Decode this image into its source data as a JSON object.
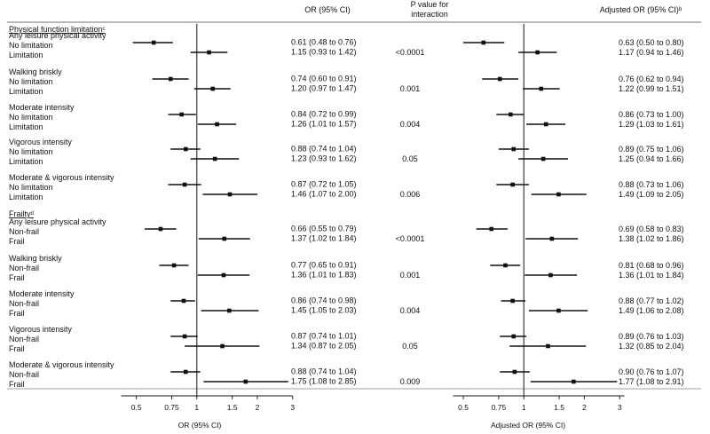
{
  "chart_data": {
    "type": "forest",
    "headers": {
      "or_col": "OR (95% CI)",
      "p_col": "P value for\ninteraction",
      "adj_col": "Adjusted OR (95% CI)ᵇ"
    },
    "left_axis": {
      "label": "OR (95% CI)",
      "scale": "log",
      "ticks": [
        "0.5",
        "0.75",
        "1",
        "1.5",
        "2",
        "3"
      ],
      "tick_values": [
        0.5,
        0.75,
        1,
        1.5,
        2,
        3
      ],
      "xlim": [
        0.45,
        3.2
      ]
    },
    "right_axis": {
      "label": "Adjusted OR (95% CI)",
      "scale": "log",
      "ticks": [
        "0.5",
        "0.75",
        "1",
        "1.5",
        "2",
        "3"
      ],
      "tick_values": [
        0.5,
        0.75,
        1,
        1.5,
        2,
        3
      ],
      "xlim": [
        0.45,
        3.2
      ]
    },
    "sections": [
      {
        "title": "Physical function limitationᶜ",
        "groups": [
          {
            "name": "Any leisure physical activity",
            "p": "<0.0001",
            "rows": [
              {
                "label": "No limitation",
                "or": 0.61,
                "lo": 0.48,
                "hi": 0.76,
                "or_text": "0.61 (0.48 to 0.76)",
                "aor": 0.63,
                "alo": 0.5,
                "ahi": 0.8,
                "aor_text": "0.63 (0.50 to 0.80)"
              },
              {
                "label": "Limitation",
                "or": 1.15,
                "lo": 0.93,
                "hi": 1.42,
                "or_text": "1.15 (0.93 to 1.42)",
                "aor": 1.17,
                "alo": 0.94,
                "ahi": 1.46,
                "aor_text": "1.17 (0.94 to 1.46)"
              }
            ]
          },
          {
            "name": "Walking briskly",
            "p": "0.001",
            "rows": [
              {
                "label": "No limitation",
                "or": 0.74,
                "lo": 0.6,
                "hi": 0.91,
                "or_text": "0.74 (0.60 to 0.91)",
                "aor": 0.76,
                "alo": 0.62,
                "ahi": 0.94,
                "aor_text": "0.76 (0.62 to 0.94)"
              },
              {
                "label": "Limitation",
                "or": 1.2,
                "lo": 0.97,
                "hi": 1.47,
                "or_text": "1.20 (0.97 to 1.47)",
                "aor": 1.22,
                "alo": 0.99,
                "ahi": 1.51,
                "aor_text": "1.22 (0.99 to 1.51)"
              }
            ]
          },
          {
            "name": "Moderate intensity",
            "p": "0.004",
            "rows": [
              {
                "label": "No limitation",
                "or": 0.84,
                "lo": 0.72,
                "hi": 0.99,
                "or_text": "0.84 (0.72 to 0.99)",
                "aor": 0.86,
                "alo": 0.73,
                "ahi": 1.0,
                "aor_text": "0.86 (0.73 to 1.00)"
              },
              {
                "label": "Limitation",
                "or": 1.26,
                "lo": 1.01,
                "hi": 1.57,
                "or_text": "1.26 (1.01 to 1.57)",
                "aor": 1.29,
                "alo": 1.03,
                "ahi": 1.61,
                "aor_text": "1.29 (1.03 to 1.61)"
              }
            ]
          },
          {
            "name": "Vigorous intensity",
            "p": "0.05",
            "rows": [
              {
                "label": "No limitation",
                "or": 0.88,
                "lo": 0.74,
                "hi": 1.04,
                "or_text": "0.88 (0.74 to 1.04)",
                "aor": 0.89,
                "alo": 0.75,
                "ahi": 1.06,
                "aor_text": "0.89 (0.75 to 1.06)"
              },
              {
                "label": "Limitation",
                "or": 1.23,
                "lo": 0.93,
                "hi": 1.62,
                "or_text": "1.23 (0.93 to 1.62)",
                "aor": 1.25,
                "alo": 0.94,
                "ahi": 1.66,
                "aor_text": "1.25 (0.94 to 1.66)"
              }
            ]
          },
          {
            "name": "Moderate & vigorous intensity",
            "p": "0.006",
            "rows": [
              {
                "label": "No limitation",
                "or": 0.87,
                "lo": 0.72,
                "hi": 1.05,
                "or_text": "0.87 (0.72 to 1.05)",
                "aor": 0.88,
                "alo": 0.73,
                "ahi": 1.06,
                "aor_text": "0.88 (0.73 to 1.06)"
              },
              {
                "label": "Limitation",
                "or": 1.46,
                "lo": 1.07,
                "hi": 2.0,
                "or_text": "1.46 (1.07 to 2.00)",
                "aor": 1.49,
                "alo": 1.09,
                "ahi": 2.05,
                "aor_text": "1.49 (1.09 to 2.05)"
              }
            ]
          }
        ]
      },
      {
        "title": "Frailtyᵈ",
        "groups": [
          {
            "name": "Any leisure physical activity",
            "p": "<0.0001",
            "rows": [
              {
                "label": "Non-frail",
                "or": 0.66,
                "lo": 0.55,
                "hi": 0.79,
                "or_text": "0.66 (0.55 to 0.79)",
                "aor": 0.69,
                "alo": 0.58,
                "ahi": 0.83,
                "aor_text": "0.69 (0.58 to 0.83)"
              },
              {
                "label": "Frail",
                "or": 1.37,
                "lo": 1.02,
                "hi": 1.84,
                "or_text": "1.37 (1.02 to 1.84)",
                "aor": 1.38,
                "alo": 1.02,
                "ahi": 1.86,
                "aor_text": "1.38 (1.02 to 1.86)"
              }
            ]
          },
          {
            "name": "Walking briskly",
            "p": "0.001",
            "rows": [
              {
                "label": "Non-frail",
                "or": 0.77,
                "lo": 0.65,
                "hi": 0.91,
                "or_text": "0.77 (0.65 to 0.91)",
                "aor": 0.81,
                "alo": 0.68,
                "ahi": 0.96,
                "aor_text": "0.81 (0.68 to 0.96)"
              },
              {
                "label": "Frail",
                "or": 1.36,
                "lo": 1.01,
                "hi": 1.83,
                "or_text": "1.36 (1.01 to 1.83)",
                "aor": 1.36,
                "alo": 1.01,
                "ahi": 1.84,
                "aor_text": "1.36 (1.01 to 1.84)"
              }
            ]
          },
          {
            "name": "Moderate intensity",
            "p": "0.004",
            "rows": [
              {
                "label": "Non-frail",
                "or": 0.86,
                "lo": 0.74,
                "hi": 0.98,
                "or_text": "0.86 (0.74 to 0.98)",
                "aor": 0.88,
                "alo": 0.77,
                "ahi": 1.02,
                "aor_text": "0.88 (0.77 to 1.02)"
              },
              {
                "label": "Frail",
                "or": 1.45,
                "lo": 1.05,
                "hi": 2.03,
                "or_text": "1.45 (1.05 to 2.03)",
                "aor": 1.49,
                "alo": 1.06,
                "ahi": 2.08,
                "aor_text": "1.49 (1.06 to 2.08)"
              }
            ]
          },
          {
            "name": "Vigorous intensity",
            "p": "0.05",
            "rows": [
              {
                "label": "Non-frail",
                "or": 0.87,
                "lo": 0.74,
                "hi": 1.01,
                "or_text": "0.87 (0.74 to 1.01)",
                "aor": 0.89,
                "alo": 0.76,
                "ahi": 1.03,
                "aor_text": "0.89 (0.76 to 1.03)"
              },
              {
                "label": "Frail",
                "or": 1.34,
                "lo": 0.87,
                "hi": 2.05,
                "or_text": "1.34 (0.87 to 2.05)",
                "aor": 1.32,
                "alo": 0.85,
                "ahi": 2.04,
                "aor_text": "1.32 (0.85 to 2.04)"
              }
            ]
          },
          {
            "name": "Moderate & vigorous intensity",
            "p": "0.009",
            "rows": [
              {
                "label": "Non-frail",
                "or": 0.88,
                "lo": 0.74,
                "hi": 1.04,
                "or_text": "0.88 (0.74 to 1.04)",
                "aor": 0.9,
                "alo": 0.76,
                "ahi": 1.07,
                "aor_text": "0.90 (0.76 to 1.07)"
              },
              {
                "label": "Frail",
                "or": 1.75,
                "lo": 1.08,
                "hi": 2.85,
                "or_text": "1.75 (1.08 to 2.85)",
                "aor": 1.77,
                "alo": 1.08,
                "ahi": 2.91,
                "aor_text": "1.77 (1.08 to 2.91)"
              }
            ]
          }
        ]
      }
    ]
  }
}
